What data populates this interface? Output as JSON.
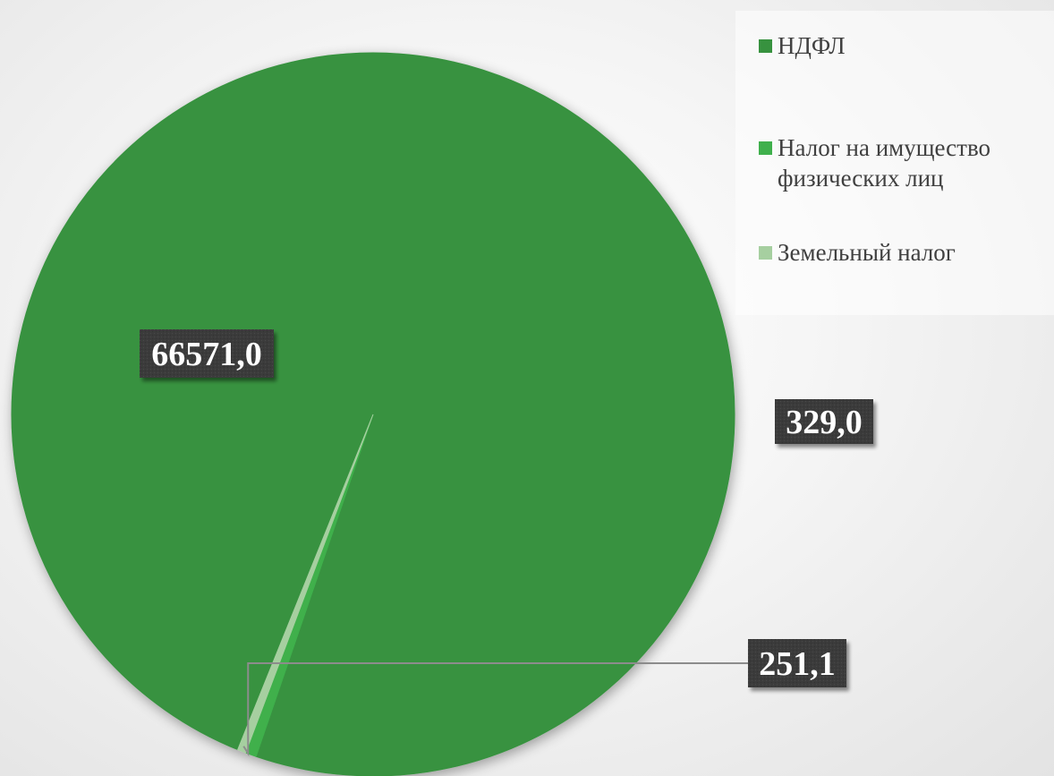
{
  "chart_data": {
    "type": "pie",
    "categories": [
      "НДФЛ",
      "Налог на имущество физических лиц",
      "Земельный налог"
    ],
    "values": [
      66571.0,
      329.0,
      251.1
    ],
    "data_labels": [
      "66571,0",
      "329,0",
      "251,1"
    ],
    "colors": [
      "#37923f",
      "#3fb04c",
      "#a6cfa0"
    ],
    "legend_position": "top-right",
    "start_angle_deg": 112
  },
  "legend": {
    "items": [
      {
        "label": "НДФЛ",
        "color": "#37923f"
      },
      {
        "label": "Налог на имущество физических лиц",
        "color": "#3fb04c"
      },
      {
        "label": "Земельный налог",
        "color": "#a6cfa0"
      }
    ]
  },
  "colors": {
    "label_box": "#3b3b3b",
    "label_text": "#ffffff",
    "leader_line": "#8c8c8c"
  }
}
